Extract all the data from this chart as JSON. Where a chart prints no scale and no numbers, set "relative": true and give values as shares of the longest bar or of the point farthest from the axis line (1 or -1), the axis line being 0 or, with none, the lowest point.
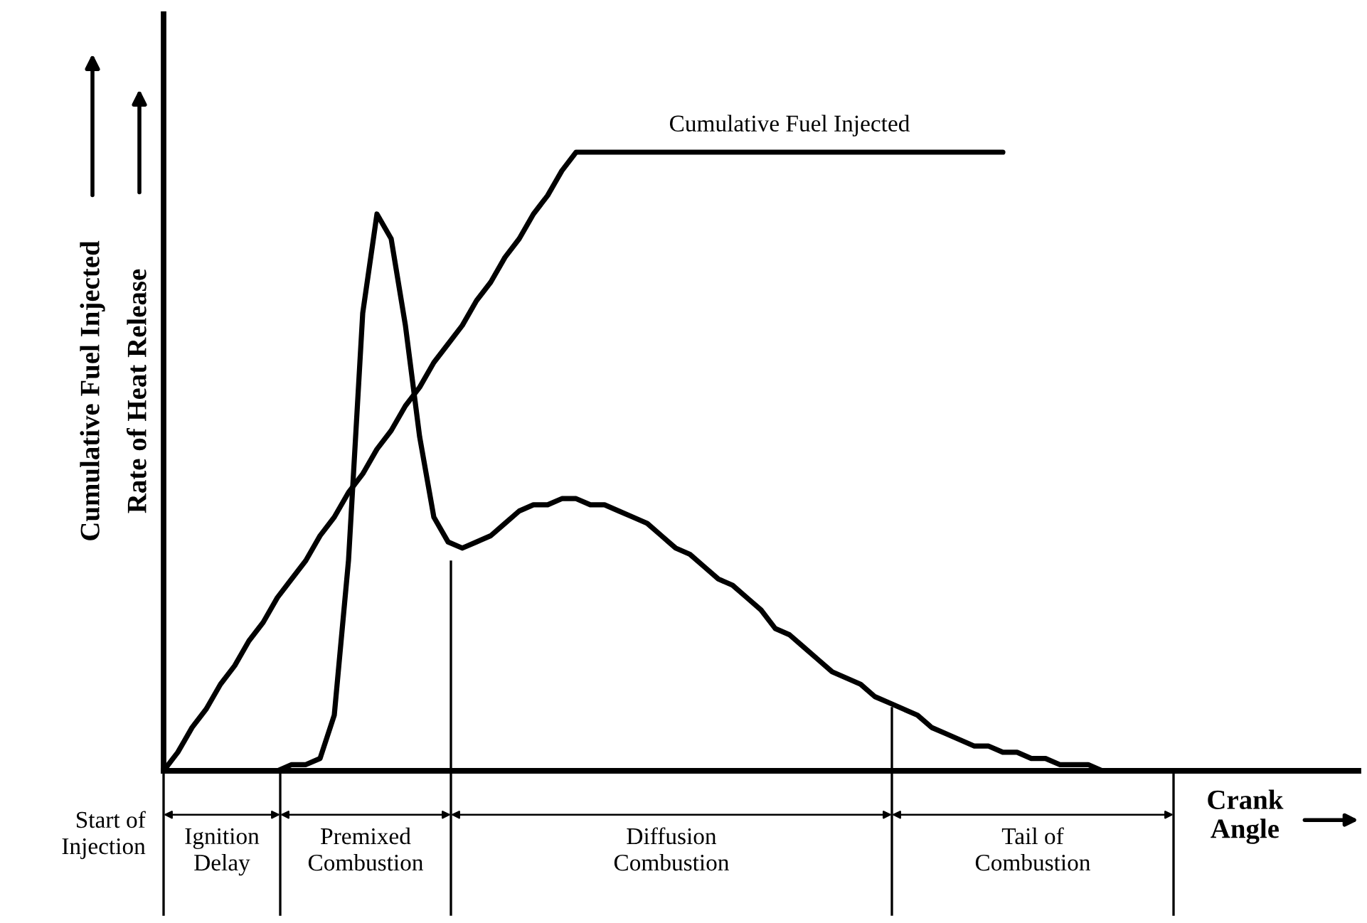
{
  "chart_data": {
    "type": "line",
    "relative": true,
    "xlabel": "Crank Angle",
    "ylabel": "Cumulative Fuel Injected",
    "annotations": [
      "Rate of Heat Release",
      "Start of Injection",
      "Ignition Delay",
      "Premixed Combustion",
      "Diffusion Combustion",
      "Tail of Combustion"
    ],
    "categories": [
      null,
      null,
      null,
      null,
      null,
      null,
      null,
      null,
      null,
      null,
      null,
      null,
      null,
      null,
      null,
      null,
      null,
      null,
      null,
      null,
      null,
      null,
      null,
      null,
      null,
      null,
      null,
      null,
      null,
      null,
      null,
      null,
      null,
      null,
      null,
      null,
      null,
      null,
      null,
      null,
      null,
      null,
      null,
      null,
      null,
      null,
      null,
      null,
      null,
      null,
      null,
      null,
      null,
      null,
      null,
      null,
      null,
      null,
      null,
      null,
      null,
      null,
      null,
      null,
      null,
      null,
      null,
      null,
      null,
      null,
      null,
      null,
      null,
      null,
      null,
      null,
      null,
      null,
      null,
      null,
      null,
      null,
      null,
      null,
      null
    ],
    "series": [
      {
        "name": "Cumulative Fuel Injected",
        "color": "#000000",
        "values": [
          0,
          0.03,
          0.07,
          0.1,
          0.14,
          0.17,
          0.21,
          0.24,
          0.28,
          0.31,
          0.34,
          0.38,
          0.41,
          0.45,
          0.48,
          0.52,
          0.55,
          0.59,
          0.62,
          0.66,
          0.69,
          0.72,
          0.76,
          0.79,
          0.83,
          0.86,
          0.9,
          0.93,
          0.97,
          1,
          1,
          1,
          1,
          1,
          1,
          1,
          1,
          1,
          1,
          1,
          1,
          1,
          1,
          1,
          1,
          1,
          1,
          1,
          1,
          1,
          1,
          1,
          1,
          1,
          1,
          1,
          1,
          1,
          1,
          1,
          null,
          null,
          null,
          null,
          null,
          null,
          null,
          null,
          null,
          null,
          null,
          null,
          null,
          null,
          null,
          null,
          null,
          null,
          null,
          null,
          null,
          null,
          null,
          null,
          null
        ]
      },
      {
        "color": "#000000",
        "values": [
          0,
          0,
          0,
          0,
          0,
          0,
          0,
          0,
          0,
          0.01,
          0.01,
          0.02,
          0.09,
          0.34,
          0.74,
          0.9,
          0.86,
          0.72,
          0.54,
          0.41,
          0.37,
          0.36,
          0.37,
          0.38,
          0.4,
          0.42,
          0.43,
          0.43,
          0.44,
          0.44,
          0.43,
          0.43,
          0.42,
          0.41,
          0.4,
          0.38,
          0.36,
          0.35,
          0.33,
          0.31,
          0.3,
          0.28,
          0.26,
          0.23,
          0.22,
          0.2,
          0.18,
          0.16,
          0.15,
          0.14,
          0.12,
          0.11,
          0.1,
          0.09,
          0.07,
          0.06,
          0.05,
          0.04,
          0.04,
          0.03,
          0.03,
          0.02,
          0.02,
          0.01,
          0.01,
          0.01,
          0,
          0,
          0,
          0,
          0,
          0,
          0,
          0,
          0,
          0,
          0,
          0,
          0,
          0,
          0,
          0,
          0,
          0,
          0
        ]
      }
    ]
  }
}
